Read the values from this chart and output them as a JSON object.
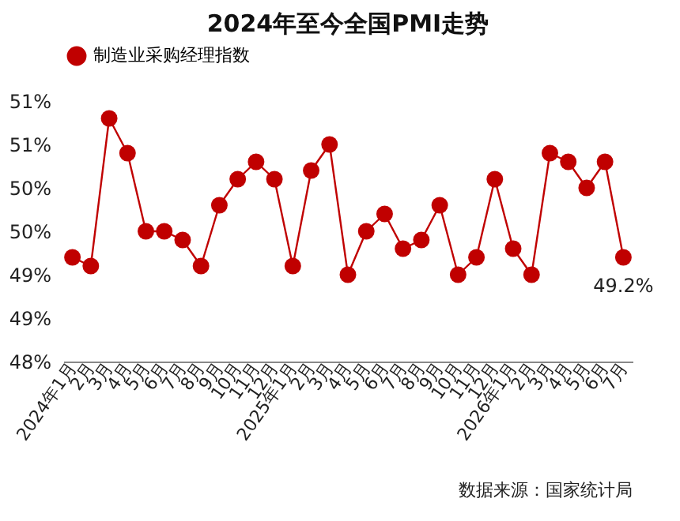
{
  "chart_data": {
    "type": "line",
    "title": "2024年至今全国PMI走势",
    "categories": [
      "2024年1月",
      "2月",
      "3月",
      "4月",
      "5月",
      "6月",
      "7月",
      "8月",
      "9月",
      "10月",
      "11月",
      "12月",
      "2025年1月",
      "2月",
      "3月",
      "4月",
      "5月",
      "6月",
      "7月",
      "8月",
      "9月",
      "10月",
      "11月",
      "12月",
      "2026年1月",
      "2月",
      "3月",
      "4月",
      "5月",
      "6月",
      "7月"
    ],
    "series": [
      {
        "name": "制造业采购经理指数",
        "color": "#c00000",
        "values": [
          49.2,
          49.1,
          50.8,
          50.4,
          49.5,
          49.5,
          49.4,
          49.1,
          49.8,
          50.1,
          50.3,
          50.1,
          49.1,
          50.2,
          50.5,
          49.0,
          49.5,
          49.7,
          49.3,
          49.4,
          49.8,
          49.0,
          49.2,
          50.1,
          49.3,
          49.0,
          50.4,
          50.3,
          50.0,
          50.3,
          49.2
        ],
        "value_labels": [
          null,
          null,
          null,
          null,
          null,
          null,
          null,
          null,
          null,
          null,
          null,
          null,
          null,
          null,
          null,
          null,
          null,
          null,
          null,
          null,
          null,
          null,
          null,
          null,
          null,
          null,
          null,
          null,
          null,
          null,
          "49.2%"
        ]
      }
    ],
    "ylim": [
      48,
      51
    ],
    "yticks": [
      {
        "value": 48,
        "label": "48%"
      },
      {
        "value": 48.5,
        "label": "49%"
      },
      {
        "value": 49,
        "label": "49%"
      },
      {
        "value": 49.5,
        "label": "50%"
      },
      {
        "value": 50,
        "label": "50%"
      },
      {
        "value": 50.5,
        "label": "51%"
      },
      {
        "value": 51,
        "label": "51%"
      }
    ],
    "marker": "circle",
    "line_style": "solid",
    "grid": false,
    "legend": "top",
    "annotations": [
      "数据来源：国家统计局"
    ]
  }
}
